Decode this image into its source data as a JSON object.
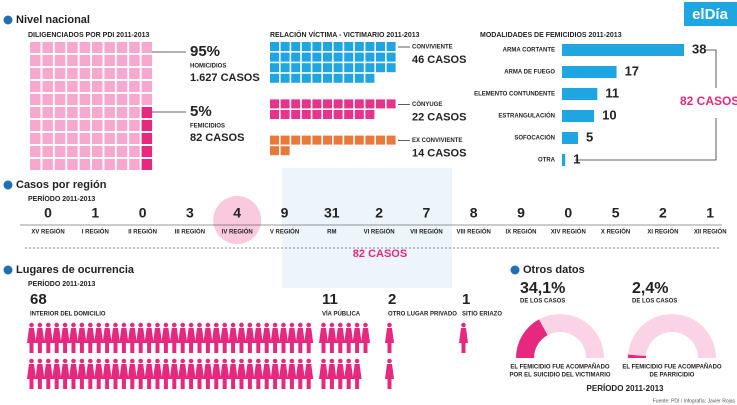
{
  "brand": "elDía",
  "nivel": {
    "heading": "Nivel nacional",
    "pdi": {
      "title": "DILIGENCIADOS POR PDI 2011-2013",
      "items": [
        {
          "value": 95,
          "value_label": "95%",
          "label": "HOMICIDIOS",
          "count": "1.627 CASOS"
        },
        {
          "value": 5,
          "value_label": "5%",
          "label": "FEMICIDIOS",
          "count": "82 CASOS"
        }
      ]
    },
    "relacion": {
      "title": "RELACIÓN VÍCTIMA - VICTIMARIO 2011-2013",
      "items": [
        {
          "label": "CONVIVIENTE",
          "value": 46,
          "value_label": "46 CASOS",
          "color": "#1fa6e0"
        },
        {
          "label": "CÓNYUGE",
          "value": 22,
          "value_label": "22 CASOS",
          "color": "#e6338b"
        },
        {
          "label": "EX CONVIVIENTE",
          "value": 14,
          "value_label": "14 CASOS",
          "color": "#e8793a"
        }
      ]
    },
    "modalidades": {
      "title": "MODALIDADES DE FEMICIDIOS 2011-2013",
      "categories": [
        "ARMA CORTANTE",
        "ARMA DE FUEGO",
        "ELEMENTO CONTUNDENTE",
        "ESTRANGULACIÓN",
        "SOFOCACIÓN",
        "OTRA"
      ],
      "values": [
        38,
        17,
        11,
        10,
        5,
        1
      ],
      "color": "#1fa6e0",
      "total": "82 CASOS"
    }
  },
  "region": {
    "heading": "Casos por región",
    "period": "PERÍODO 2011-2013",
    "categories": [
      "XV REGIÓN",
      "I REGIÓN",
      "II REGIÓN",
      "III REGIÓN",
      "IV REGIÓN",
      "V REGIÓN",
      "RM",
      "VI REGIÓN",
      "VII REGIÓN",
      "VIII REGIÓN",
      "IX REGIÓN",
      "XIV REGIÓN",
      "X REGIÓN",
      "XI REGIÓN",
      "XII REGIÓN"
    ],
    "values": [
      0,
      1,
      0,
      3,
      4,
      9,
      31,
      2,
      7,
      8,
      9,
      0,
      5,
      2,
      1
    ],
    "highlight": "IV REGIÓN",
    "total": "82 CASOS"
  },
  "lugares": {
    "heading": "Lugares de ocurrencia",
    "period": "PERÍODO 2011-2013",
    "items": [
      {
        "value": 68,
        "label": "INTERIOR DEL DOMICILIO"
      },
      {
        "value": 11,
        "label": "VÍA PÚBLICA"
      },
      {
        "value": 2,
        "label": "OTRO LUGAR PRIVADO"
      },
      {
        "value": 1,
        "label": "SITIO ERIAZO"
      }
    ]
  },
  "otros": {
    "heading": "Otros datos",
    "period": "PERÍODO 2011-2013",
    "items": [
      {
        "value": 34.1,
        "value_label": "34,1%",
        "sub": "DE LOS CASOS",
        "text": [
          "EL FEMICIDIO FUE ACOMPAÑADO",
          "POR EL SUICIDIO DEL VICTIMARIO"
        ]
      },
      {
        "value": 2.4,
        "value_label": "2,4%",
        "sub": "DE LOS CASOS",
        "text": [
          "EL FEMICIDIO FUE ACOMPAÑADO",
          "DE PARRICIDIO"
        ]
      }
    ]
  },
  "source": "Fuente: PDI / Infografía: Javier Rojas"
}
